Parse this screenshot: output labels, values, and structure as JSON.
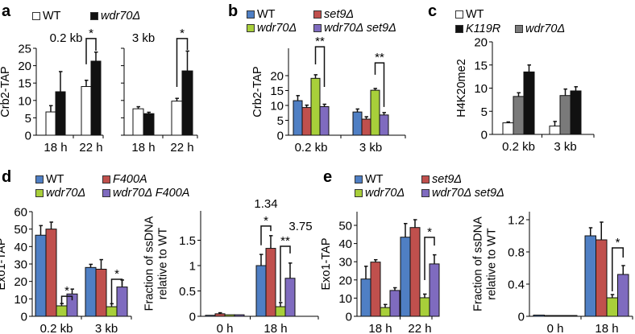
{
  "panels": [
    {
      "letter": "a",
      "legend": [
        {
          "label": "WT",
          "color": "#ffffff",
          "italic": false
        },
        {
          "label": "wdr70Δ",
          "color": "#111111",
          "italic": true
        }
      ]
    },
    {
      "letter": "b",
      "legend": [
        {
          "label": "WT",
          "color": "#4f7fc4",
          "italic": false
        },
        {
          "label": "set9Δ",
          "color": "#c0504d",
          "italic": true
        },
        {
          "label": "wdr70Δ",
          "color": "#a8cf3a",
          "italic": true
        },
        {
          "label": "wdr70Δ set9Δ",
          "color": "#7f6bbf",
          "italic": true
        }
      ]
    },
    {
      "letter": "c",
      "legend": [
        {
          "label": "WT",
          "color": "#ffffff",
          "italic": false
        },
        {
          "label": "K119R",
          "color": "#111111",
          "italic": true
        },
        {
          "label": "wdr70Δ",
          "color": "#7a7a7a",
          "italic": true
        }
      ]
    },
    {
      "letter": "d",
      "legend": [
        {
          "label": "WT",
          "color": "#4f7fc4",
          "italic": false
        },
        {
          "label": "F400A",
          "color": "#c0504d",
          "italic": true
        },
        {
          "label": "wdr70Δ",
          "color": "#a8cf3a",
          "italic": true
        },
        {
          "label": "wdr70Δ F400A",
          "color": "#7f6bbf",
          "italic": true
        }
      ]
    },
    {
      "letter": "e",
      "legend": [
        {
          "label": "WT",
          "color": "#4f7fc4",
          "italic": false
        },
        {
          "label": "set9Δ",
          "color": "#c0504d",
          "italic": true
        },
        {
          "label": "wdr70Δ",
          "color": "#a8cf3a",
          "italic": true
        },
        {
          "label": "wdr70Δ set9Δ",
          "color": "#7f6bbf",
          "italic": true
        }
      ]
    }
  ],
  "chart_data": [
    {
      "id": "a1",
      "type": "bar",
      "title": "0.2 kb",
      "ylabel": "Crb2-TAP",
      "ylim": [
        0,
        25
      ],
      "yticks": [
        0,
        5,
        10,
        15,
        20,
        25
      ],
      "show_tick_labels": true,
      "categories": [
        "18 h",
        "22 h"
      ],
      "colors": [
        "#ffffff",
        "#111111"
      ],
      "series": [
        {
          "name": "WT",
          "values": [
            6.7,
            14.0
          ],
          "errors": [
            1.8,
            1.8
          ]
        },
        {
          "name": "wdr70Δ",
          "values": [
            12.5,
            21.3
          ],
          "errors": [
            5.8,
            2.6
          ]
        }
      ],
      "significance": [
        {
          "group": 1,
          "from": 0,
          "to": 1,
          "top": 27.8,
          "left_bottom": 20.4,
          "right_bottom": 24.3,
          "label": "*"
        }
      ]
    },
    {
      "id": "a2",
      "type": "bar",
      "title": "3 kb",
      "ylabel": "",
      "ylim": [
        0,
        25
      ],
      "yticks": [
        0,
        5,
        10,
        15,
        20,
        25
      ],
      "show_tick_labels": false,
      "categories": [
        "18 h",
        "22 h"
      ],
      "colors": [
        "#ffffff",
        "#111111"
      ],
      "series": [
        {
          "name": "WT",
          "values": [
            7.6,
            9.8
          ],
          "errors": [
            0.6,
            0.8
          ]
        },
        {
          "name": "wdr70Δ",
          "values": [
            6.2,
            18.5
          ],
          "errors": [
            0.4,
            5.7
          ]
        }
      ],
      "significance": [
        {
          "group": 1,
          "from": 0,
          "to": 1,
          "top": 27.8,
          "left_bottom": 13.9,
          "right_bottom": 24.5,
          "label": "*"
        }
      ]
    },
    {
      "id": "b",
      "type": "bar",
      "title": "",
      "ylabel": "Crb2-TAP",
      "ylim": [
        0,
        25
      ],
      "yticks": [
        0,
        5,
        10,
        15,
        20
      ],
      "show_tick_labels": true,
      "categories": [
        "0.2 kb",
        "3 kb"
      ],
      "colors": [
        "#4f7fc4",
        "#c0504d",
        "#a8cf3a",
        "#7f6bbf"
      ],
      "series": [
        {
          "name": "WT",
          "values": [
            11.6,
            7.8
          ],
          "errors": [
            1.7,
            1.0
          ]
        },
        {
          "name": "set9Δ",
          "values": [
            9.3,
            5.4
          ],
          "errors": [
            0.8,
            0.8
          ]
        },
        {
          "name": "wdr70Δ",
          "values": [
            19.1,
            15.1
          ],
          "errors": [
            1.2,
            0.6
          ]
        },
        {
          "name": "wdr70Δ set9Δ",
          "values": [
            9.6,
            6.8
          ],
          "errors": [
            0.8,
            0.8
          ]
        }
      ],
      "significance": [
        {
          "group": 0,
          "from": 2,
          "to": 3,
          "top": 29.7,
          "left_bottom": 23.8,
          "right_bottom": 16.2,
          "label": "**"
        },
        {
          "group": 1,
          "from": 2,
          "to": 3,
          "top": 24.3,
          "left_bottom": 20.3,
          "right_bottom": 9.5,
          "label": "**"
        }
      ]
    },
    {
      "id": "c",
      "type": "bar",
      "title": "",
      "ylabel": "H4K20me2",
      "ylim": [
        0,
        20
      ],
      "yticks": [
        0,
        5,
        10,
        15,
        20
      ],
      "show_tick_labels": true,
      "categories": [
        "0.2 kb",
        "3 kb"
      ],
      "colors": [
        "#ffffff",
        "#7a7a7a",
        "#111111"
      ],
      "series": [
        {
          "name": "WT",
          "values": [
            2.5,
            1.8
          ],
          "errors": [
            0.2,
            1.0
          ]
        },
        {
          "name": "wdr70Δ",
          "values": [
            8.2,
            8.4
          ],
          "errors": [
            0.8,
            1.4
          ]
        },
        {
          "name": "K119R",
          "values": [
            13.5,
            9.4
          ],
          "errors": [
            1.5,
            0.9
          ]
        }
      ],
      "significance": []
    },
    {
      "id": "d1",
      "type": "bar",
      "title": "",
      "ylabel": "Exo1-TAP",
      "ylim": [
        0,
        60
      ],
      "yticks": [
        0,
        10,
        20,
        30,
        40,
        50,
        60
      ],
      "show_tick_labels": true,
      "categories": [
        "0.2 kb",
        "3 kb"
      ],
      "colors": [
        "#4f7fc4",
        "#c0504d",
        "#a8cf3a",
        "#7f6bbf"
      ],
      "series": [
        {
          "name": "WT",
          "values": [
            46.5,
            28.0
          ],
          "errors": [
            5.5,
            1.8
          ]
        },
        {
          "name": "F400A",
          "values": [
            50.0,
            27.0
          ],
          "errors": [
            4.0,
            5.5
          ]
        },
        {
          "name": "wdr70Δ",
          "values": [
            6.0,
            5.5
          ],
          "errors": [
            1.3,
            1.7
          ]
        },
        {
          "name": "wdr70Δ F400A",
          "values": [
            12.8,
            16.8
          ],
          "errors": [
            2.8,
            4.0
          ]
        }
      ],
      "significance": [
        {
          "group": 0,
          "from": 2,
          "to": 3,
          "top": 11.5,
          "left_bottom": 7.0,
          "right_bottom": 9.2,
          "label": "*"
        },
        {
          "group": 1,
          "from": 2,
          "to": 3,
          "top": 21.2,
          "left_bottom": 7.0,
          "right_bottom": 17.5,
          "label": "*"
        }
      ]
    },
    {
      "id": "d2",
      "type": "bar",
      "title": "",
      "ylabel": "Fraction of ssDNA\nrelative to WT",
      "ylim": [
        0,
        2.1
      ],
      "yticks": [
        0,
        0.5,
        1,
        1.5
      ],
      "show_tick_labels": true,
      "categories": [
        "0 h",
        "18 h"
      ],
      "colors": [
        "#4f7fc4",
        "#c0504d",
        "#a8cf3a",
        "#7f6bbf"
      ],
      "series": [
        {
          "name": "WT",
          "values": [
            0.02,
            1.0
          ],
          "errors": [
            0.0,
            0.22
          ]
        },
        {
          "name": "F400A",
          "values": [
            0.05,
            1.34
          ],
          "errors": [
            0.02,
            0.25
          ]
        },
        {
          "name": "wdr70Δ",
          "values": [
            0.03,
            0.19
          ],
          "errors": [
            0.0,
            0.08
          ]
        },
        {
          "name": "wdr70Δ F400A",
          "values": [
            0.03,
            0.75
          ],
          "errors": [
            0.0,
            0.3
          ]
        }
      ],
      "significance": [
        {
          "group": 1,
          "from": 0,
          "to": 1,
          "top": 1.78,
          "left_bottom": 1.4,
          "right_bottom": 1.68,
          "label": "*"
        },
        {
          "group": 1,
          "from": 2,
          "to": 3,
          "top": 1.38,
          "left_bottom": 0.29,
          "right_bottom": 1.24,
          "label": "**"
        }
      ],
      "annotations": [
        "1.34",
        "3.75"
      ]
    },
    {
      "id": "e1",
      "type": "bar",
      "title": "",
      "ylabel": "Exo1-TAP",
      "ylim": [
        0,
        57
      ],
      "yticks": [
        0,
        10,
        20,
        30,
        40,
        50
      ],
      "show_tick_labels": true,
      "categories": [
        "18 h",
        "22 h"
      ],
      "colors": [
        "#4f7fc4",
        "#c0504d",
        "#a8cf3a",
        "#7f6bbf"
      ],
      "series": [
        {
          "name": "WT",
          "values": [
            20.5,
            43.5
          ],
          "errors": [
            7.0,
            7.5
          ]
        },
        {
          "name": "set9Δ",
          "values": [
            29.8,
            48.8
          ],
          "errors": [
            1.3,
            4.3
          ]
        },
        {
          "name": "wdr70Δ",
          "values": [
            4.8,
            10.2
          ],
          "errors": [
            1.7,
            2.0
          ]
        },
        {
          "name": "wdr70Δ set9Δ",
          "values": [
            14.2,
            28.8
          ],
          "errors": [
            1.5,
            5.0
          ]
        }
      ],
      "significance": [
        {
          "group": 1,
          "from": 2,
          "to": 3,
          "top": 43.4,
          "left_bottom": 19.9,
          "right_bottom": 38.9,
          "label": "*"
        }
      ]
    },
    {
      "id": "e2",
      "type": "bar",
      "title": "",
      "ylabel": "Fraction of ssDNA\nrelative to WT",
      "ylim": [
        0,
        1.3
      ],
      "yticks": [
        0,
        0.4,
        0.8,
        1.2
      ],
      "show_tick_labels": true,
      "categories": [
        "0 h",
        "18 h"
      ],
      "colors": [
        "#4f7fc4",
        "#c0504d",
        "#a8cf3a",
        "#7f6bbf"
      ],
      "series": [
        {
          "name": "WT",
          "values": [
            0.015,
            1.0
          ],
          "errors": [
            0.0,
            0.1
          ]
        },
        {
          "name": "set9Δ",
          "values": [
            0.01,
            0.95
          ],
          "errors": [
            0.0,
            0.22
          ]
        },
        {
          "name": "wdr70Δ",
          "values": [
            0.01,
            0.23
          ],
          "errors": [
            0.0,
            0.04
          ]
        },
        {
          "name": "wdr70Δ set9Δ",
          "values": [
            0.01,
            0.52
          ],
          "errors": [
            0.0,
            0.11
          ]
        }
      ],
      "significance": [
        {
          "group": 1,
          "from": 2,
          "to": 3,
          "top": 0.85,
          "left_bottom": 0.31,
          "right_bottom": 0.73,
          "label": "*"
        }
      ]
    }
  ]
}
